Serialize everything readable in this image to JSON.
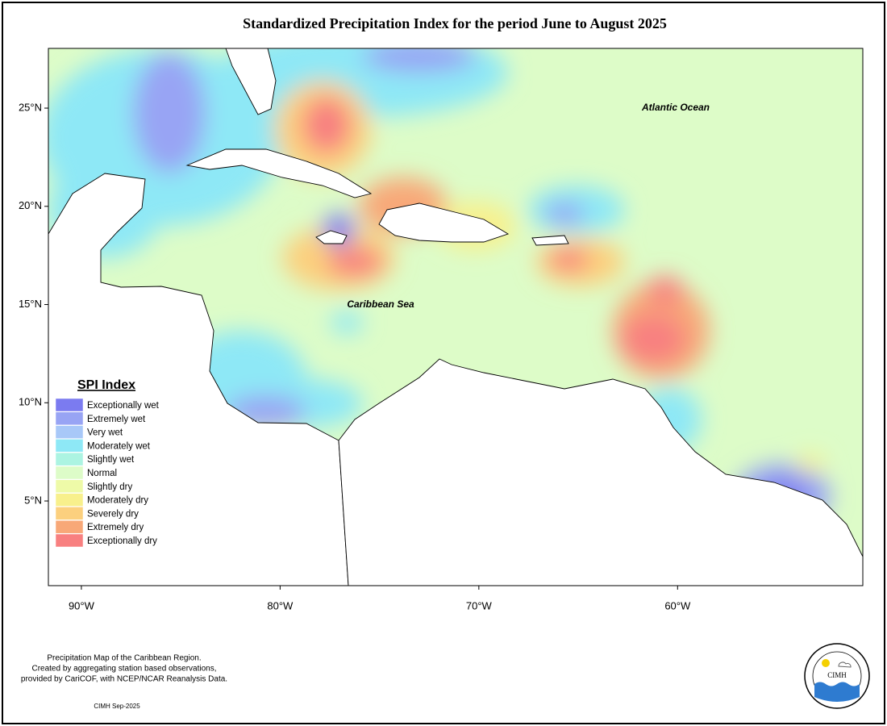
{
  "header": {
    "title": "Standardized Precipitation Index for the period June to August 2025"
  },
  "map": {
    "lonlim": [
      -91.66,
      -50.68
    ],
    "latlim": [
      0.69,
      28.04
    ],
    "lon_ticks": [
      {
        "value": -90,
        "label": "90°W"
      },
      {
        "value": -80,
        "label": "80°W"
      },
      {
        "value": -70,
        "label": "70°W"
      },
      {
        "value": -60,
        "label": "60°W"
      }
    ],
    "lat_ticks": [
      {
        "value": 25,
        "label": "25°N"
      },
      {
        "value": 20,
        "label": "20°N"
      },
      {
        "value": 15,
        "label": "15°N"
      },
      {
        "value": 10,
        "label": "10°N"
      },
      {
        "value": 5,
        "label": "5°N"
      }
    ],
    "labels": [
      "Atlantic Ocean",
      "Caribbean Sea"
    ]
  },
  "legend": {
    "title": "SPI Index",
    "items": [
      {
        "name": "Exceptionally wet",
        "color": "#7b7bf0"
      },
      {
        "name": "Extremely wet",
        "color": "#98a4f4"
      },
      {
        "name": "Very wet",
        "color": "#a8c8f8"
      },
      {
        "name": "Moderately wet",
        "color": "#8ee8f6"
      },
      {
        "name": "Slightly wet",
        "color": "#acf4e2"
      },
      {
        "name": "Normal",
        "color": "#ddfcc8"
      },
      {
        "name": "Slightly dry",
        "color": "#eefaa8"
      },
      {
        "name": "Moderately dry",
        "color": "#f8f08c"
      },
      {
        "name": "Severely dry",
        "color": "#fcd07e"
      },
      {
        "name": "Extremely dry",
        "color": "#f8a878"
      },
      {
        "name": "Exceptionally dry",
        "color": "#f88080"
      }
    ]
  },
  "footer": {
    "lines": [
      "Precipitation Map of the Caribbean Region.",
      "Created by aggregating station based observations,",
      "provided by CariCOF, with NCEP/NCAR Reanalysis Data."
    ],
    "credit": "CIMH Sep-2025"
  },
  "logo": {
    "name": "CIMH"
  }
}
